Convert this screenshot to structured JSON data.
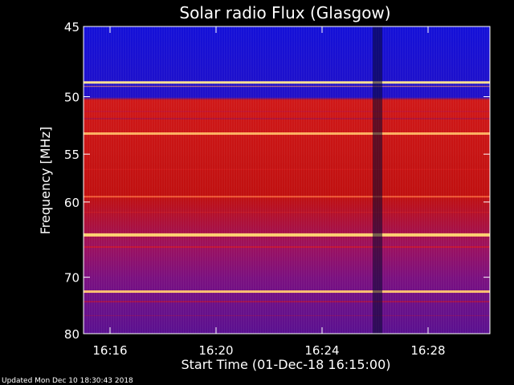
{
  "chart_data": {
    "type": "heatmap",
    "title": "Solar radio Flux (Glasgow)",
    "xlabel": "Start Time (01-Dec-18 16:15:00)",
    "ylabel": "Frequency [MHz]",
    "x_ticks": [
      "16:16",
      "16:20",
      "16:24",
      "16:28"
    ],
    "y_ticks": [
      "45",
      "50",
      "55",
      "60",
      "70",
      "80"
    ],
    "footer": "Updated Mon Dec 10 18:30:43 2018",
    "colors": {
      "background": "#000000",
      "low_intensity": "#1a10e0",
      "mid_intensity": "#c81010",
      "high_intensity": "#ffd070"
    }
  }
}
